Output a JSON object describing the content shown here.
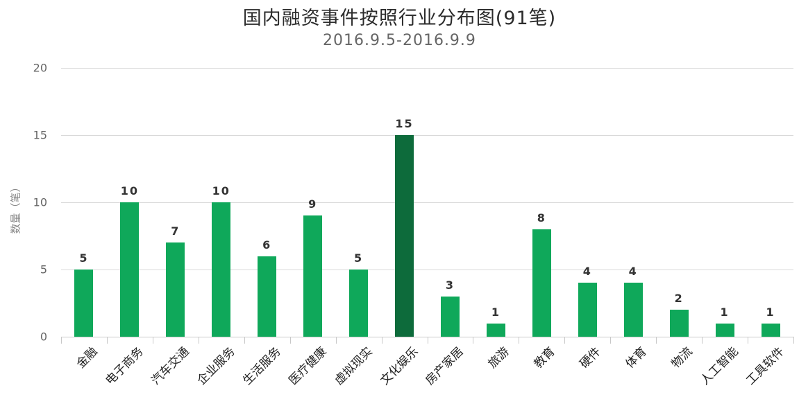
{
  "chart_data": {
    "type": "bar",
    "title": "国内融资事件按照行业分布图(91笔)",
    "subtitle": "2016.9.5-2016.9.9",
    "xlabel": "",
    "ylabel": "数量（笔）",
    "ylim": [
      0,
      20
    ],
    "yticks": [
      0,
      5,
      10,
      15,
      20
    ],
    "grid": true,
    "legend": "none",
    "categories": [
      "金融",
      "电子商务",
      "汽车交通",
      "企业服务",
      "生活服务",
      "医疗健康",
      "虚拟现实",
      "文化娱乐",
      "房产家居",
      "旅游",
      "教育",
      "硬件",
      "体育",
      "物流",
      "人工智能",
      "工具软件"
    ],
    "values": [
      5,
      10,
      7,
      10,
      6,
      9,
      5,
      15,
      3,
      1,
      8,
      4,
      4,
      2,
      1,
      1
    ],
    "highlight_index": 7,
    "colors": {
      "bar": "#0fa85a",
      "highlight_bar": "#0d6b3b",
      "grid": "#d9d9d9"
    }
  }
}
